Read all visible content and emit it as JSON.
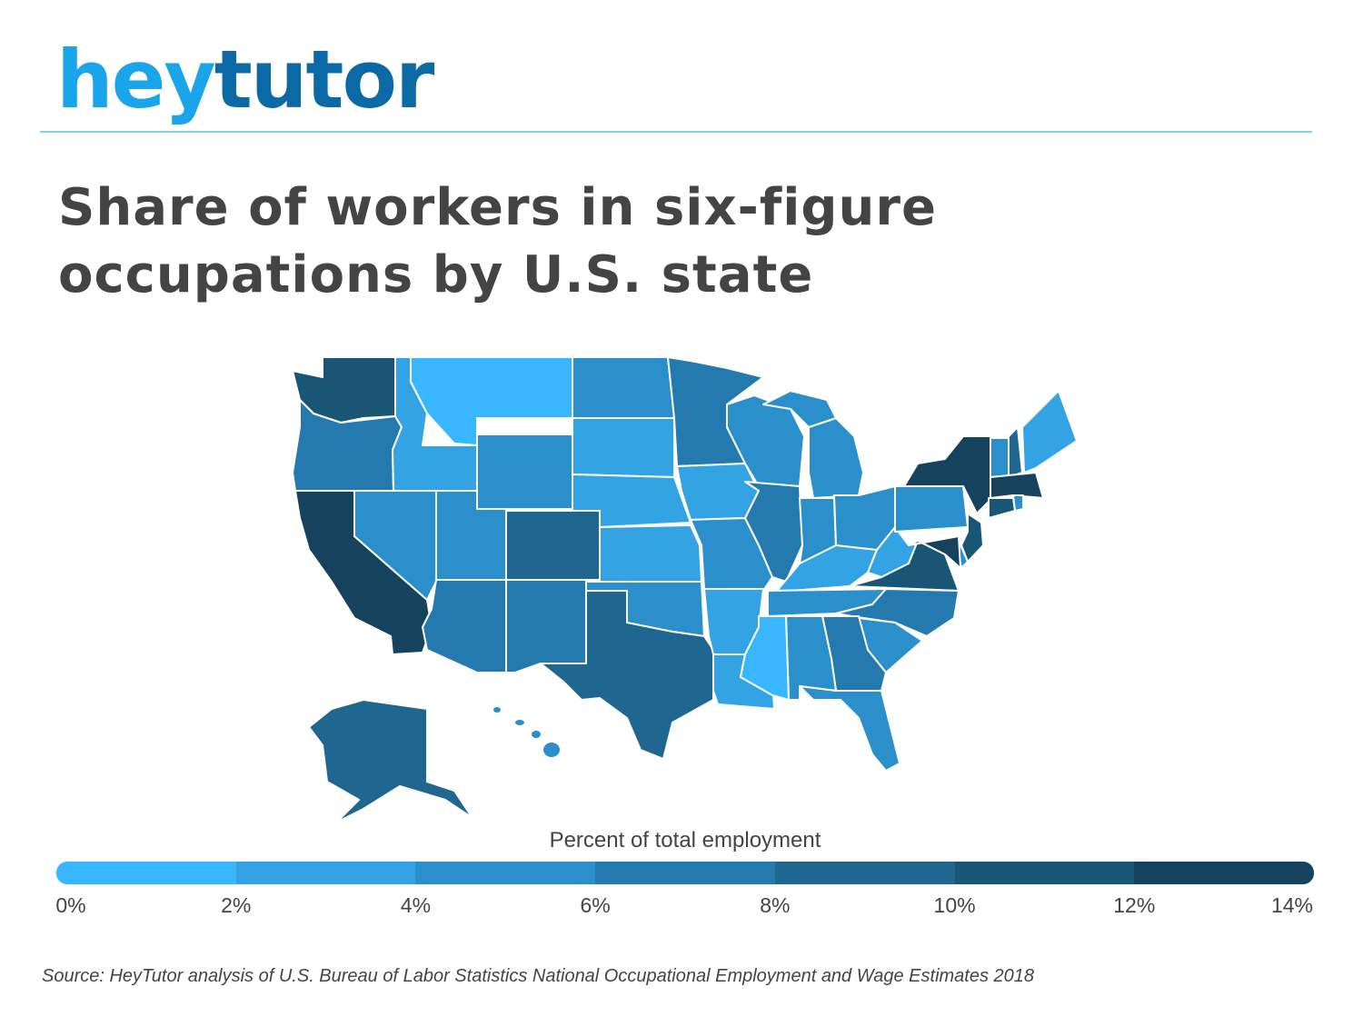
{
  "logo": {
    "part1": "hey",
    "part2": "tutor"
  },
  "title": "Share of workers in six-figure occupations by U.S. state",
  "chart_data": {
    "type": "choropleth",
    "title": "Share of workers in six-figure occupations by U.S. state",
    "legend_title": "Percent of total employment",
    "bins": [
      {
        "range": [
          0,
          2
        ],
        "color": "#38b6ff"
      },
      {
        "range": [
          2,
          4
        ],
        "color": "#33a3e3"
      },
      {
        "range": [
          4,
          6
        ],
        "color": "#2a8fca"
      },
      {
        "range": [
          6,
          8
        ],
        "color": "#247aae"
      },
      {
        "range": [
          8,
          10
        ],
        "color": "#1f6790"
      },
      {
        "range": [
          10,
          12
        ],
        "color": "#195574"
      },
      {
        "range": [
          12,
          14
        ],
        "color": "#15425c"
      }
    ],
    "tick_labels": [
      "0%",
      "2%",
      "4%",
      "6%",
      "8%",
      "10%",
      "12%",
      "14%"
    ],
    "states": {
      "WA": 5,
      "OR": 3,
      "CA": 6,
      "NV": 2,
      "ID": 1,
      "MT": 0,
      "WY": 2,
      "UT": 2,
      "CO": 4,
      "AZ": 3,
      "NM": 3,
      "ND": 2,
      "SD": 1,
      "NE": 1,
      "KS": 1,
      "OK": 2,
      "TX": 4,
      "MN": 3,
      "IA": 1,
      "MO": 2,
      "AR": 1,
      "LA": 1,
      "WI": 2,
      "IL": 3,
      "MI": 2,
      "IN": 2,
      "OH": 2,
      "KY": 1,
      "TN": 2,
      "MS": 0,
      "AL": 2,
      "GA": 3,
      "FL": 2,
      "SC": 2,
      "NC": 3,
      "VA": 5,
      "WV": 1,
      "PA": 2,
      "NY": 6,
      "VT": 2,
      "NH": 4,
      "ME": 1,
      "MA": 6,
      "RI": 2,
      "CT": 5,
      "NJ": 5,
      "DE": 2,
      "MD": 6,
      "AK": 4,
      "HI": 2
    }
  },
  "source": "Source: HeyTutor analysis of U.S. Bureau of Labor Statistics National Occupational Employment and Wage Estimates  2018"
}
